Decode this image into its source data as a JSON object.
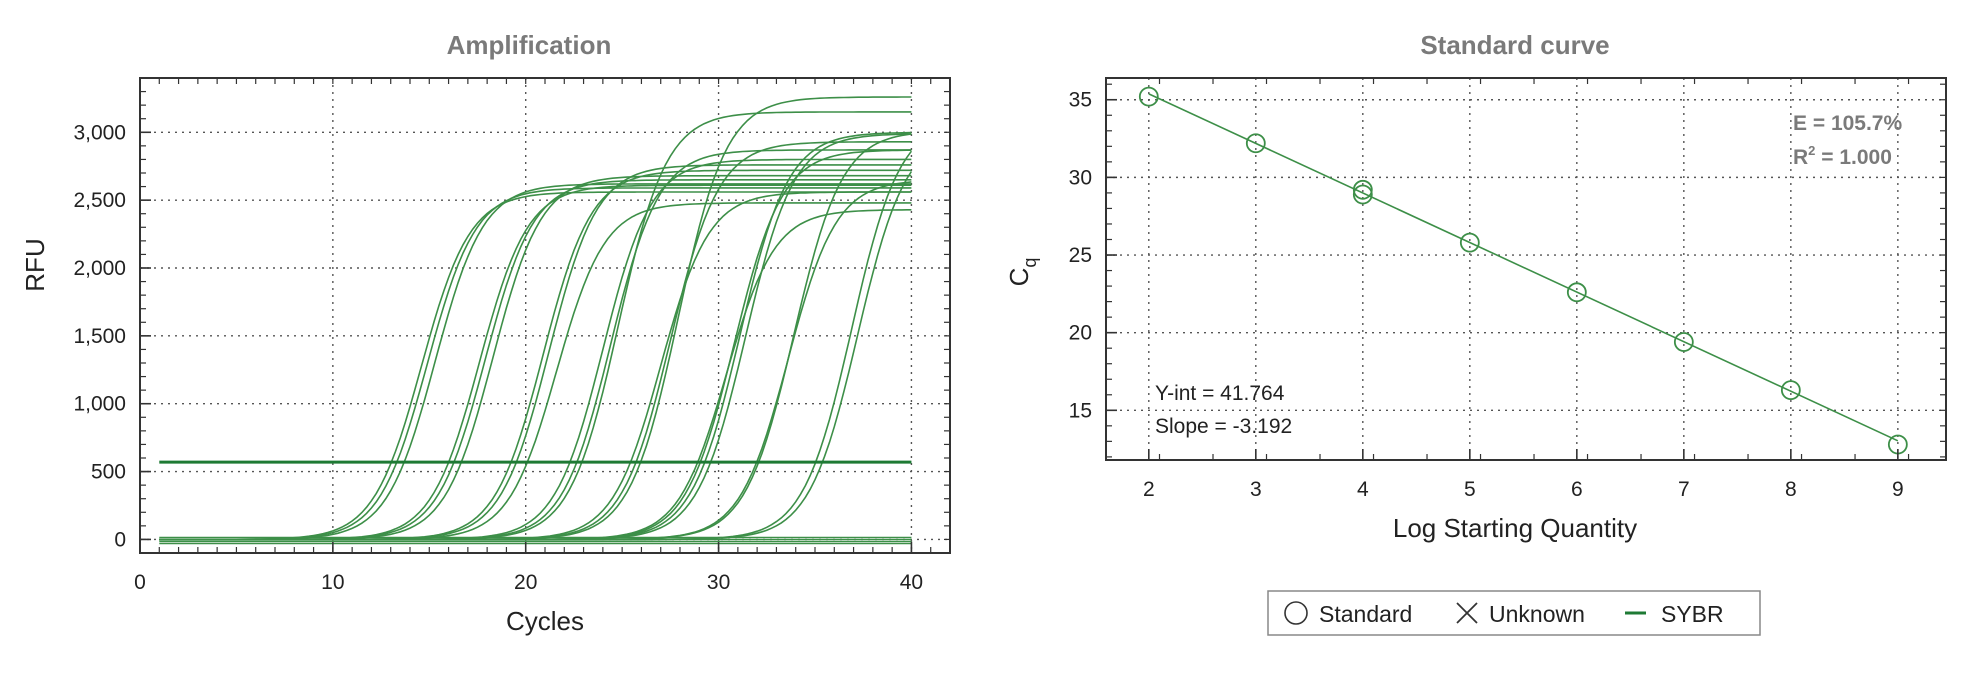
{
  "colors": {
    "curve": "#3d8f48",
    "threshold": "#1e7a34",
    "title": "#7a7a7a",
    "text": "#222222"
  },
  "chart_data": [
    {
      "type": "line",
      "title": "Amplification",
      "xlabel": "Cycles",
      "ylabel": "RFU",
      "xlim": [
        0,
        42
      ],
      "ylim": [
        -100,
        3400
      ],
      "xticks": [
        0,
        10,
        20,
        30,
        40
      ],
      "yticks": [
        0,
        500,
        1000,
        1500,
        2000,
        2500,
        3000
      ],
      "xtick_labels": [
        "0",
        "10",
        "20",
        "30",
        "40"
      ],
      "ytick_labels": [
        "0",
        "500",
        "1,000",
        "1,500",
        "2,000",
        "2,500",
        "3,000"
      ],
      "grid": true,
      "threshold": 570,
      "curves": [
        {
          "mid": 14.6,
          "plateau": 2560
        },
        {
          "mid": 14.9,
          "plateau": 2590
        },
        {
          "mid": 15.3,
          "plateau": 2620
        },
        {
          "mid": 17.6,
          "plateau": 2610
        },
        {
          "mid": 17.9,
          "plateau": 2650
        },
        {
          "mid": 18.3,
          "plateau": 2680
        },
        {
          "mid": 20.9,
          "plateau": 2720
        },
        {
          "mid": 21.2,
          "plateau": 2760
        },
        {
          "mid": 21.6,
          "plateau": 2480
        },
        {
          "mid": 24.0,
          "plateau": 2800
        },
        {
          "mid": 24.4,
          "plateau": 2870
        },
        {
          "mid": 24.8,
          "plateau": 3150
        },
        {
          "mid": 27.0,
          "plateau": 2560
        },
        {
          "mid": 27.5,
          "plateau": 2930
        },
        {
          "mid": 27.9,
          "plateau": 3260
        },
        {
          "mid": 30.4,
          "plateau": 2430
        },
        {
          "mid": 30.8,
          "plateau": 2870
        },
        {
          "mid": 31.1,
          "plateau": 3000
        },
        {
          "mid": 31.4,
          "plateau": 2990
        },
        {
          "mid": 33.6,
          "plateau": 2650
        },
        {
          "mid": 33.9,
          "plateau": 3010
        },
        {
          "mid": 36.9,
          "plateau": 3100
        },
        {
          "mid": 37.2,
          "plateau": 3000
        }
      ]
    },
    {
      "type": "scatter",
      "title": "Standard curve",
      "xlabel": "Log Starting Quantity",
      "ylabel": "C",
      "ylabel_sub": "q",
      "xlim": [
        1.6,
        9.45
      ],
      "ylim": [
        11.8,
        36.4
      ],
      "xticks": [
        2,
        3,
        4,
        5,
        6,
        7,
        8,
        9
      ],
      "yticks": [
        15,
        20,
        25,
        30,
        35
      ],
      "xtick_labels": [
        "2",
        "3",
        "4",
        "5",
        "6",
        "7",
        "8",
        "9"
      ],
      "ytick_labels": [
        "15",
        "20",
        "25",
        "30",
        "35"
      ],
      "grid": true,
      "points": [
        {
          "x": 2,
          "y": 35.2
        },
        {
          "x": 3,
          "y": 32.2
        },
        {
          "x": 4,
          "y": 29.2
        },
        {
          "x": 4,
          "y": 28.9
        },
        {
          "x": 5,
          "y": 25.8
        },
        {
          "x": 6,
          "y": 22.6
        },
        {
          "x": 7,
          "y": 19.4
        },
        {
          "x": 8,
          "y": 16.3
        },
        {
          "x": 9,
          "y": 12.8
        }
      ],
      "fit": {
        "intercept": 41.764,
        "slope": -3.192
      },
      "efficiency_label": "E = 105.7%",
      "r2_label_prefix": "R",
      "r2_label_sup": "2",
      "r2_label_suffix": " = 1.000",
      "yint_label": "Y-int = 41.764",
      "slope_label": "Slope = -3.192",
      "legend": [
        {
          "symbol": "circle",
          "label": "Standard"
        },
        {
          "symbol": "x",
          "label": "Unknown"
        },
        {
          "symbol": "line",
          "label": "SYBR"
        }
      ],
      "legend_position": "bottom"
    }
  ]
}
